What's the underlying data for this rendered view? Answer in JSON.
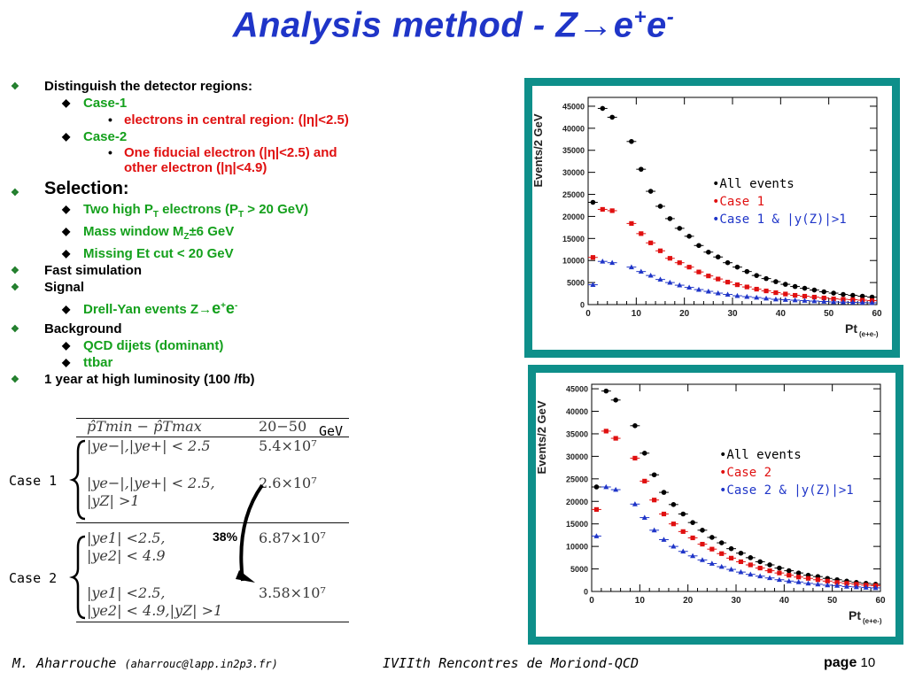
{
  "title": {
    "main": "Analysis method - Z→e",
    "sup1": "+",
    "mid": "e",
    "sup2": "-"
  },
  "bullets": {
    "b1": "Distinguish the detector regions:",
    "b1_case1": "Case-1",
    "b1_case1_sub": "electrons in central region: (|η|<2.5)",
    "b1_case2": "Case-2",
    "b1_case2_sub_a": "One fiducial electron (|η|<2.5) and",
    "b1_case2_sub_b": "other electron (|η|<4.9)",
    "b2": "Selection:",
    "b2_a1": "Two high P",
    "b2_a_sub1": "T",
    "b2_a2": " electrons (P",
    "b2_a_sub2": "T",
    "b2_a3": " > 20 GeV)",
    "b2_b1": "Mass window M",
    "b2_b_sub": "Z",
    "b2_b2": "±6 GeV",
    "b2_c": "Missing Et cut < 20 GeV",
    "b3": "Fast simulation",
    "b4": "Signal",
    "b4_a1": "Drell-Yan events Z",
    "b4_a_arrow": "→",
    "b4_a2": "e",
    "b4_a_sup1": "+",
    "b4_a3": "e",
    "b4_a_sup2": "-",
    "b5": "Background",
    "b5_a": "QCD dijets (dominant)",
    "b5_b": "ttbar",
    "b6": "1 year at high luminosity (100 /fb)"
  },
  "table": {
    "header_left": "p̂Tmin − p̂Tmax",
    "header_right": "20−50",
    "unit": "GeV",
    "rows": [
      {
        "cond": "|ye−|,|ye+| < 2.5",
        "cond2": "",
        "value": "5.4×10⁷"
      },
      {
        "cond": "|ye−|,|ye+| < 2.5,",
        "cond2": "|yZ| >1",
        "value": "2.6×10⁷"
      },
      {
        "cond": "|ye1| <2.5,",
        "cond2": "|ye2| < 4.9",
        "value": "6.87×10⁷"
      },
      {
        "cond": "|ye1| <2.5,",
        "cond2": "|ye2| < 4.9,|yZ| >1",
        "value": "3.58×10⁷"
      }
    ],
    "case1_label": "Case 1",
    "case2_label": "Case 2",
    "ratio_label": "38%"
  },
  "colors": {
    "frame": "#0e8f8a",
    "title": "#1f35c8",
    "green": "#14a01c",
    "red": "#e01010",
    "blue": "#1f35c8"
  },
  "chart_data": [
    {
      "type": "scatter",
      "ylabel": "Events/2 GeV",
      "xlabel_main": "Pt",
      "xlabel_sub": "(e+e-)",
      "xlim": [
        0,
        60
      ],
      "ylim": [
        0,
        47000
      ],
      "xticks": [
        "0",
        "10",
        "20",
        "30",
        "40",
        "50",
        "60"
      ],
      "yticks": [
        "0",
        "5000",
        "10000",
        "15000",
        "20000",
        "25000",
        "30000",
        "35000",
        "40000",
        "45000"
      ],
      "legend": [
        "•All events",
        "•Case 1",
        "•Case 1 & |y(Z)|>1"
      ],
      "x": [
        1,
        3,
        5,
        9,
        11,
        13,
        15,
        17,
        19,
        21,
        23,
        25,
        27,
        29,
        31,
        33,
        35,
        37,
        39,
        41,
        43,
        45,
        47,
        49,
        51,
        53,
        55,
        57,
        59
      ],
      "series": [
        {
          "name": "All events",
          "color": "#000000",
          "marker": "circle",
          "values": [
            23200,
            44500,
            42500,
            37000,
            30700,
            25700,
            22300,
            19500,
            17300,
            15500,
            13400,
            11900,
            10800,
            9500,
            8500,
            7500,
            6600,
            5900,
            5200,
            4600,
            4100,
            3700,
            3300,
            2900,
            2600,
            2300,
            2100,
            1900,
            1700
          ]
        },
        {
          "name": "Case 1",
          "color": "#e01010",
          "marker": "square",
          "values": [
            10700,
            21600,
            21300,
            18400,
            16100,
            14000,
            12200,
            10500,
            9500,
            8500,
            7400,
            6500,
            5800,
            5100,
            4500,
            4000,
            3500,
            3100,
            2700,
            2400,
            2100,
            1900,
            1700,
            1500,
            1300,
            1200,
            1100,
            1000,
            900
          ]
        },
        {
          "name": "Case 1 & |y(Z)|>1",
          "color": "#1f35c8",
          "marker": "triangle",
          "values": [
            4500,
            9800,
            9500,
            8500,
            7500,
            6600,
            5700,
            5000,
            4400,
            3900,
            3400,
            3000,
            2600,
            2300,
            2000,
            1800,
            1600,
            1400,
            1200,
            1100,
            1000,
            900,
            800,
            700,
            600,
            550,
            500,
            450,
            400
          ]
        }
      ]
    },
    {
      "type": "scatter",
      "ylabel": "Events/2 GeV",
      "xlabel_main": "Pt",
      "xlabel_sub": "(e+e-)",
      "xlim": [
        0,
        60
      ],
      "ylim": [
        0,
        46000
      ],
      "xticks": [
        "0",
        "10",
        "20",
        "30",
        "40",
        "50",
        "60"
      ],
      "yticks": [
        "0",
        "5000",
        "10000",
        "15000",
        "20000",
        "25000",
        "30000",
        "35000",
        "40000",
        "45000"
      ],
      "legend": [
        "•All events",
        "•Case 2",
        "•Case 2 & |y(Z)|>1"
      ],
      "x": [
        1,
        3,
        5,
        9,
        11,
        13,
        15,
        17,
        19,
        21,
        23,
        25,
        27,
        29,
        31,
        33,
        35,
        37,
        39,
        41,
        43,
        45,
        47,
        49,
        51,
        53,
        55,
        57,
        59
      ],
      "series": [
        {
          "name": "All events",
          "color": "#000000",
          "marker": "circle",
          "values": [
            23200,
            44500,
            42500,
            36800,
            30700,
            25900,
            22000,
            19300,
            17200,
            15300,
            13600,
            12000,
            10800,
            9500,
            8500,
            7500,
            6600,
            5900,
            5200,
            4600,
            4100,
            3600,
            3300,
            2900,
            2600,
            2300,
            2000,
            1800,
            1600
          ]
        },
        {
          "name": "Case 2",
          "color": "#e01010",
          "marker": "square",
          "values": [
            18200,
            35600,
            34000,
            29600,
            24500,
            20300,
            17200,
            15000,
            13300,
            11900,
            10500,
            9400,
            8400,
            7400,
            6600,
            5900,
            5200,
            4600,
            4100,
            3600,
            3200,
            2900,
            2600,
            2300,
            2000,
            1800,
            1600,
            1400,
            1300
          ]
        },
        {
          "name": "Case 2 & |y(Z)|>1",
          "color": "#1f35c8",
          "marker": "triangle",
          "values": [
            12300,
            23200,
            22600,
            19400,
            16400,
            13600,
            11500,
            10000,
            8900,
            7900,
            7000,
            6200,
            5500,
            4900,
            4300,
            3800,
            3400,
            3000,
            2600,
            2300,
            2100,
            1800,
            1600,
            1400,
            1300,
            1100,
            1000,
            900,
            800
          ]
        }
      ]
    }
  ],
  "footer": {
    "author": "M. Aharrouche",
    "email": "(aharrouc@lapp.in2p3.fr)",
    "conference": "IVIIth Rencontres de Moriond-QCD",
    "page_word": "page",
    "page_num": "10"
  }
}
